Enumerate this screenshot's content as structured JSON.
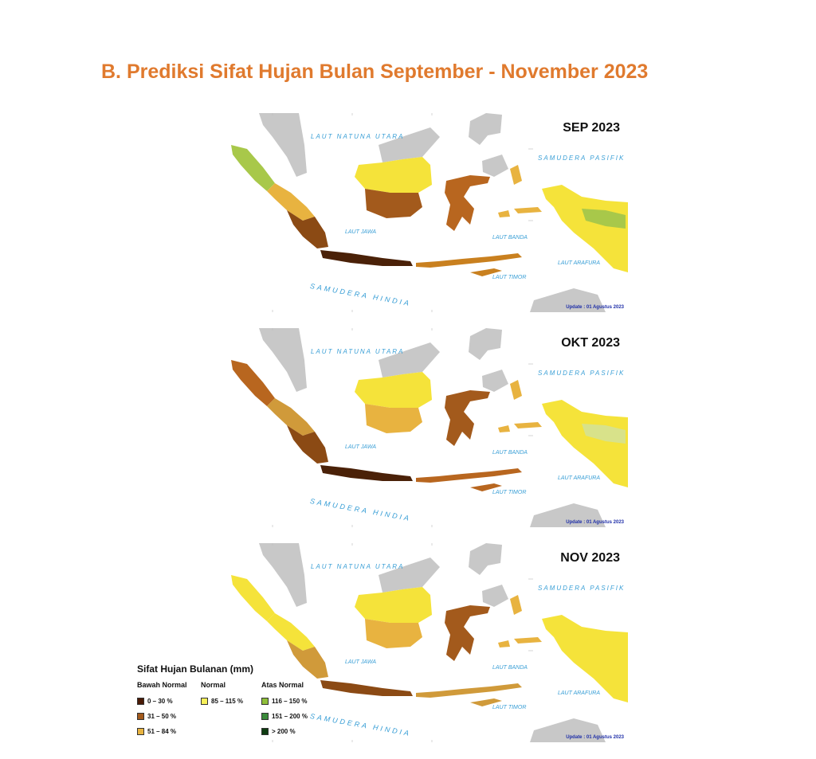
{
  "title": "B. Prediksi Sifat Hujan Bulan September - November 2023",
  "sea_labels": {
    "natuna": "LAUT NATUNA UTARA",
    "pasifik": "SAMUDERA PASIFIK",
    "jawa": "LAUT JAWA",
    "banda": "LAUT BANDA",
    "arafura": "LAUT ARAFURA",
    "timor": "LAUT TIMOR",
    "hindia": "SAMUDERA HINDIA"
  },
  "panels": [
    {
      "label": "SEP 2023",
      "update": "Update : 01 Agustus  2023",
      "fills": {
        "sumatra_north": "#a8c84a",
        "sumatra_mid": "#e8b340",
        "sumatra_south": "#8b4a14",
        "java": "#4a2108",
        "kalimantan_north": "#f5e33a",
        "kalimantan_south": "#a35a1c",
        "sulawesi": "#b8661f",
        "nusa": "#c9801f",
        "maluku": "#e8b340",
        "papua": "#f5e33a",
        "papua_green": "#a8c84a"
      }
    },
    {
      "label": "OKT 2023",
      "update": "Update : 01 Agustus  2023",
      "fills": {
        "sumatra_north": "#b8661f",
        "sumatra_mid": "#d09a3a",
        "sumatra_south": "#8b4a14",
        "java": "#4a2108",
        "kalimantan_north": "#f5e33a",
        "kalimantan_south": "#e8b340",
        "sulawesi": "#a35a1c",
        "nusa": "#b8661f",
        "maluku": "#e8b340",
        "papua": "#f5e33a",
        "papua_green": "#d8e28a"
      }
    },
    {
      "label": "NOV 2023",
      "update": "Update : 01 Agustus  2023",
      "fills": {
        "sumatra_north": "#f5e33a",
        "sumatra_mid": "#f5e33a",
        "sumatra_south": "#d09a3a",
        "java": "#8b4a14",
        "kalimantan_north": "#f5e33a",
        "kalimantan_south": "#e8b340",
        "sulawesi": "#a35a1c",
        "nusa": "#d09a3a",
        "maluku": "#e8b340",
        "papua": "#f5e33a",
        "papua_green": "#f5e33a"
      }
    }
  ],
  "legend": {
    "title": "Sifat Hujan Bulanan (mm)",
    "groups": [
      {
        "name": "Bawah Normal",
        "items": [
          {
            "label": "0 – 30 %",
            "color": "#4a1a06"
          },
          {
            "label": "31 – 50 %",
            "color": "#a35a1c"
          },
          {
            "label": "51 – 84 %",
            "color": "#e8b340"
          }
        ]
      },
      {
        "name": "Normal",
        "items": [
          {
            "label": "85 – 115 %",
            "color": "#f7f05a"
          }
        ]
      },
      {
        "name": "Atas Normal",
        "items": [
          {
            "label": "116 – 150 %",
            "color": "#8fbf3a"
          },
          {
            "label": "151 – 200 %",
            "color": "#3a8a3a"
          },
          {
            "label": "> 200 %",
            "color": "#0f3d12"
          }
        ]
      }
    ]
  }
}
